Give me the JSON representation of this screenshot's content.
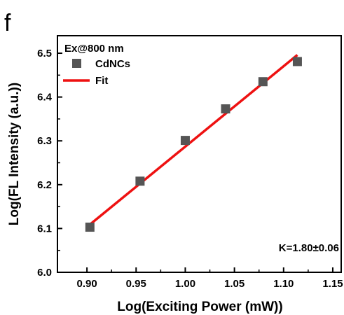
{
  "panel_label": "f",
  "chart_data": {
    "type": "scatter",
    "title": "",
    "xlabel": "Log(Exciting Power (mW))",
    "ylabel": "Log(FL Intensity (a.u.))",
    "xlim": [
      0.87,
      1.16
    ],
    "ylim": [
      6.0,
      6.54
    ],
    "x_ticks": [
      "0.90",
      "0.95",
      "1.00",
      "1.05",
      "1.10",
      "1.15"
    ],
    "x_tick_values": [
      0.9,
      0.95,
      1.0,
      1.05,
      1.1,
      1.15
    ],
    "y_ticks": [
      "6.0",
      "6.1",
      "6.2",
      "6.3",
      "6.4",
      "6.5"
    ],
    "y_tick_values": [
      6.0,
      6.1,
      6.2,
      6.3,
      6.4,
      6.5
    ],
    "legend_title": "Ex@800 nm",
    "legend_placement": "top-left",
    "series": [
      {
        "name": "CdNCs",
        "color": "#555555",
        "marker": "square",
        "x": [
          0.903,
          0.954,
          1.0,
          1.041,
          1.079,
          1.114
        ],
        "y": [
          6.103,
          6.208,
          6.301,
          6.373,
          6.435,
          6.481
        ]
      }
    ],
    "fit": {
      "name": "Fit",
      "color": "#ee1111",
      "x": [
        0.903,
        1.114
      ],
      "y": [
        6.109,
        6.496
      ]
    },
    "annotation": "K=1.80±0.06",
    "grid": false
  }
}
